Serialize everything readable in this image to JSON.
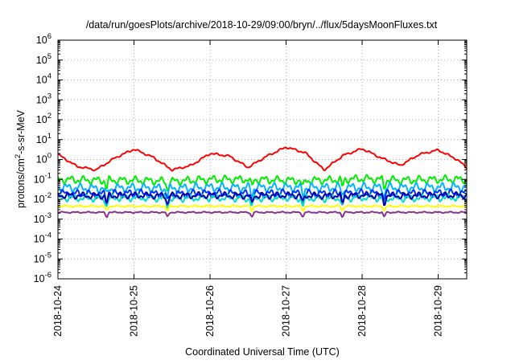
{
  "chart_data": {
    "type": "line",
    "title": "/data/run/goesPlots/archive/2018-10-29/09:00/bryn/../flux/5daysMoonFluxes.txt",
    "xlabel": "Coordinated Universal Time (UTC)",
    "ylabel": "protons/cm²-s-sr-MeV",
    "yscale": "log",
    "ylim_exp": [
      -6,
      6
    ],
    "ytick_labels": [
      {
        "base": "10",
        "exp": "6"
      },
      {
        "base": "10",
        "exp": "5"
      },
      {
        "base": "10",
        "exp": "4"
      },
      {
        "base": "10",
        "exp": "3"
      },
      {
        "base": "10",
        "exp": "2"
      },
      {
        "base": "10",
        "exp": "1"
      },
      {
        "base": "10",
        "exp": "0"
      },
      {
        "base": "10",
        "exp": "-1"
      },
      {
        "base": "10",
        "exp": "-2"
      },
      {
        "base": "10",
        "exp": "-3"
      },
      {
        "base": "10",
        "exp": "-4"
      },
      {
        "base": "10",
        "exp": "-5"
      },
      {
        "base": "10",
        "exp": "-6"
      }
    ],
    "xlim": [
      "2018-10-24",
      "2018-10-29 09:00"
    ],
    "x_tick_labels": [
      "2018-10-24",
      "2018-10-25",
      "2018-10-26",
      "2018-10-27",
      "2018-10-28",
      "2018-10-29"
    ],
    "grid": true,
    "legend": "none",
    "series": [
      {
        "color": "#ff0000",
        "x_days": [
          0,
          0.25,
          0.5,
          0.75,
          1.0,
          1.25,
          1.5,
          1.75,
          2.0,
          2.25,
          2.5,
          2.75,
          3.0,
          3.25,
          3.5,
          3.75,
          4.0,
          4.25,
          4.5,
          4.75,
          5.0,
          5.25,
          5.375
        ],
        "values": [
          1.8,
          0.45,
          0.3,
          1.2,
          3.3,
          1.3,
          0.3,
          0.5,
          2.0,
          1.5,
          0.4,
          1.5,
          4.2,
          2.2,
          0.3,
          1.6,
          3.5,
          1.2,
          0.5,
          1.8,
          3.0,
          1.0,
          0.38
        ]
      },
      {
        "color": "#00ee00",
        "x_days": [
          0,
          0.5,
          1.0,
          1.5,
          2.0,
          2.5,
          3.0,
          3.5,
          4.0,
          4.5,
          5.0,
          5.375
        ],
        "values": [
          0.1,
          0.09,
          0.09,
          0.08,
          0.1,
          0.1,
          0.09,
          0.09,
          0.11,
          0.09,
          0.1,
          0.1
        ]
      },
      {
        "color": "#00b4ff",
        "x_days": [
          0,
          0.5,
          1.0,
          1.5,
          2.0,
          2.5,
          3.0,
          3.5,
          4.0,
          4.5,
          5.0,
          5.375
        ],
        "values": [
          0.04,
          0.035,
          0.038,
          0.035,
          0.04,
          0.038,
          0.04,
          0.038,
          0.04,
          0.038,
          0.04,
          0.04
        ]
      },
      {
        "color": "#0033ff",
        "x_days": [
          0,
          0.5,
          1.0,
          1.5,
          2.0,
          2.5,
          3.0,
          3.5,
          4.0,
          4.5,
          5.0,
          5.375
        ],
        "values": [
          0.02,
          0.018,
          0.02,
          0.018,
          0.02,
          0.019,
          0.02,
          0.019,
          0.02,
          0.019,
          0.02,
          0.02
        ]
      },
      {
        "color": "#00ddcc",
        "x_days": [
          0,
          0.5,
          1.0,
          1.5,
          2.0,
          2.5,
          3.0,
          3.5,
          4.0,
          4.5,
          5.0,
          5.375
        ],
        "values": [
          0.012,
          0.011,
          0.012,
          0.011,
          0.012,
          0.011,
          0.012,
          0.011,
          0.012,
          0.011,
          0.012,
          0.012
        ]
      },
      {
        "color": "#0000aa",
        "x_days": [
          0,
          0.5,
          1.0,
          1.5,
          2.0,
          2.5,
          3.0,
          3.5,
          4.0,
          4.5,
          5.0,
          5.375
        ],
        "values": [
          0.016,
          0.015,
          0.016,
          0.015,
          0.016,
          0.015,
          0.016,
          0.015,
          0.016,
          0.015,
          0.016,
          0.016
        ]
      },
      {
        "color": "#ffff00",
        "x_days": [
          0,
          0.5,
          1.0,
          1.5,
          2.0,
          2.5,
          3.0,
          3.5,
          4.0,
          4.5,
          5.0,
          5.375
        ],
        "values": [
          0.0045,
          0.0045,
          0.0045,
          0.0045,
          0.0045,
          0.0045,
          0.0045,
          0.0045,
          0.0045,
          0.0045,
          0.0045,
          0.0045
        ]
      },
      {
        "color": "#883388",
        "x_days": [
          0,
          0.5,
          1.0,
          1.5,
          2.0,
          2.5,
          3.0,
          3.5,
          4.0,
          4.5,
          5.0,
          5.375
        ],
        "values": [
          0.0022,
          0.0022,
          0.0022,
          0.0022,
          0.0022,
          0.0022,
          0.0022,
          0.0022,
          0.0022,
          0.0022,
          0.0022,
          0.0022
        ]
      }
    ]
  }
}
